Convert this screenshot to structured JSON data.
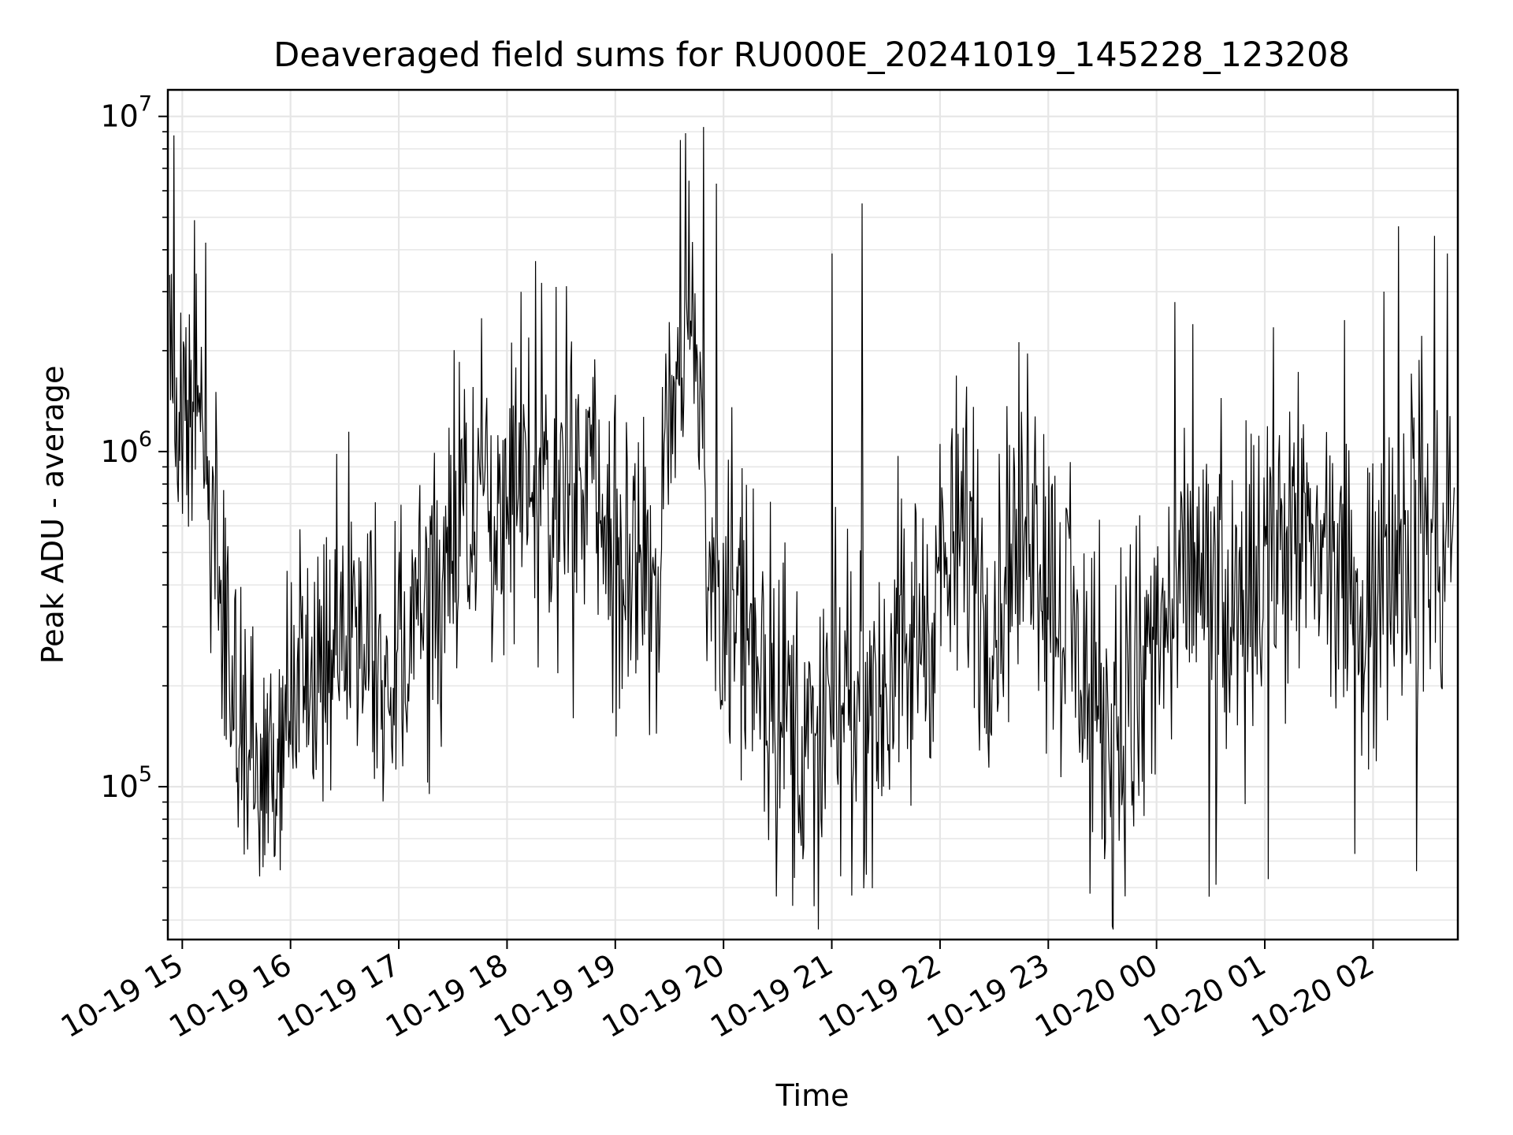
{
  "chart_data": {
    "type": "line",
    "title": "Deaveraged field sums for RU000E_20241019_145228_123208",
    "xlabel": "Time",
    "ylabel": "Peak ADU - average",
    "x_scale": "time",
    "y_scale": "log",
    "xlim": [
      "2024-10-19 14:52",
      "2024-10-20 02:47"
    ],
    "ylim": [
      35000,
      12000000
    ],
    "x_ticks": [
      {
        "label": "10-19 15",
        "time": "2024-10-19 15:00"
      },
      {
        "label": "10-19 16",
        "time": "2024-10-19 16:00"
      },
      {
        "label": "10-19 17",
        "time": "2024-10-19 17:00"
      },
      {
        "label": "10-19 18",
        "time": "2024-10-19 18:00"
      },
      {
        "label": "10-19 19",
        "time": "2024-10-19 19:00"
      },
      {
        "label": "10-19 20",
        "time": "2024-10-19 20:00"
      },
      {
        "label": "10-19 21",
        "time": "2024-10-19 21:00"
      },
      {
        "label": "10-19 22",
        "time": "2024-10-19 22:00"
      },
      {
        "label": "10-19 23",
        "time": "2024-10-19 23:00"
      },
      {
        "label": "10-20 00",
        "time": "2024-10-20 00:00"
      },
      {
        "label": "10-20 01",
        "time": "2024-10-20 01:00"
      },
      {
        "label": "10-20 02",
        "time": "2024-10-20 02:00"
      }
    ],
    "y_ticks": [
      {
        "value": 100000,
        "base": "10",
        "exp": "5"
      },
      {
        "value": 1000000,
        "base": "10",
        "exp": "6"
      },
      {
        "value": 10000000,
        "base": "10",
        "exp": "7"
      }
    ],
    "grid": true,
    "line_color": "#000000",
    "series": [
      {
        "x": [
          "2024-10-19 14:53",
          "2024-10-19 15:00",
          "2024-10-19 15:08",
          "2024-10-19 15:15",
          "2024-10-19 15:23",
          "2024-10-19 15:30",
          "2024-10-19 15:38",
          "2024-10-19 15:45",
          "2024-10-19 15:53",
          "2024-10-19 16:00",
          "2024-10-19 16:08",
          "2024-10-19 16:15",
          "2024-10-19 16:23",
          "2024-10-19 16:30",
          "2024-10-19 16:38",
          "2024-10-19 16:45",
          "2024-10-19 16:53",
          "2024-10-19 17:00",
          "2024-10-19 17:08",
          "2024-10-19 17:15",
          "2024-10-19 17:23",
          "2024-10-19 17:30",
          "2024-10-19 17:38",
          "2024-10-19 17:45",
          "2024-10-19 17:53",
          "2024-10-19 18:00",
          "2024-10-19 18:08",
          "2024-10-19 18:15",
          "2024-10-19 18:23",
          "2024-10-19 18:30",
          "2024-10-19 18:38",
          "2024-10-19 18:45",
          "2024-10-19 18:53",
          "2024-10-19 19:00",
          "2024-10-19 19:08",
          "2024-10-19 19:15",
          "2024-10-19 19:23",
          "2024-10-19 19:30",
          "2024-10-19 19:38",
          "2024-10-19 19:45",
          "2024-10-19 19:53",
          "2024-10-19 20:00",
          "2024-10-19 20:08",
          "2024-10-19 20:15",
          "2024-10-19 20:23",
          "2024-10-19 20:30",
          "2024-10-19 20:38",
          "2024-10-19 20:45",
          "2024-10-19 20:53",
          "2024-10-19 21:00",
          "2024-10-19 21:08",
          "2024-10-19 21:15",
          "2024-10-19 21:23",
          "2024-10-19 21:30",
          "2024-10-19 21:38",
          "2024-10-19 21:45",
          "2024-10-19 21:53",
          "2024-10-19 22:00",
          "2024-10-19 22:08",
          "2024-10-19 22:15",
          "2024-10-19 22:23",
          "2024-10-19 22:30",
          "2024-10-19 22:38",
          "2024-10-19 22:45",
          "2024-10-19 22:53",
          "2024-10-19 23:00",
          "2024-10-19 23:08",
          "2024-10-19 23:15",
          "2024-10-19 23:23",
          "2024-10-19 23:30",
          "2024-10-19 23:38",
          "2024-10-19 23:45",
          "2024-10-19 23:53",
          "2024-10-20 00:00",
          "2024-10-20 00:08",
          "2024-10-20 00:15",
          "2024-10-20 00:23",
          "2024-10-20 00:30",
          "2024-10-20 00:38",
          "2024-10-20 00:45",
          "2024-10-20 00:53",
          "2024-10-20 01:00",
          "2024-10-20 01:08",
          "2024-10-20 01:15",
          "2024-10-20 01:23",
          "2024-10-20 01:30",
          "2024-10-20 01:38",
          "2024-10-20 01:45",
          "2024-10-20 01:53",
          "2024-10-20 02:00",
          "2024-10-20 02:08",
          "2024-10-20 02:15",
          "2024-10-20 02:23",
          "2024-10-20 02:30",
          "2024-10-20 02:38",
          "2024-10-20 02:45"
        ],
        "y": [
          1500000,
          1200000,
          1100000,
          700000,
          320000,
          160000,
          120000,
          100000,
          110000,
          150000,
          180000,
          210000,
          280000,
          320000,
          300000,
          260000,
          230000,
          220000,
          290000,
          400000,
          530000,
          600000,
          650000,
          720000,
          780000,
          760000,
          720000,
          700000,
          680000,
          660000,
          700000,
          730000,
          620000,
          520000,
          430000,
          380000,
          360000,
          1700000,
          2600000,
          2100000,
          420000,
          380000,
          330000,
          270000,
          230000,
          190000,
          160000,
          140000,
          120000,
          150000,
          180000,
          200000,
          190000,
          210000,
          230000,
          260000,
          330000,
          400000,
          450000,
          650000,
          380000,
          330000,
          480000,
          560000,
          600000,
          420000,
          330000,
          260000,
          200000,
          150000,
          140000,
          180000,
          210000,
          260000,
          300000,
          390000,
          420000,
          360000,
          300000,
          260000,
          380000,
          520000,
          560000,
          580000,
          560000,
          490000,
          430000,
          350000,
          280000,
          300000,
          480000,
          560000,
          600000,
          520000,
          420000,
          600000
        ],
        "spread": [
          2.2,
          2.0,
          1.9,
          1.9,
          2.1,
          2.2,
          2.2,
          2.1,
          2.2,
          2.4,
          2.6,
          2.8,
          2.8,
          2.8,
          2.7,
          2.6,
          2.6,
          2.6,
          2.7,
          2.7,
          2.6,
          2.5,
          2.4,
          2.4,
          2.5,
          2.5,
          2.4,
          2.4,
          2.4,
          2.5,
          2.6,
          2.6,
          2.6,
          2.6,
          2.6,
          2.6,
          2.5,
          2.0,
          1.9,
          1.9,
          2.4,
          2.5,
          2.6,
          2.7,
          2.8,
          2.9,
          2.9,
          2.9,
          2.9,
          2.9,
          2.9,
          2.8,
          2.8,
          2.8,
          2.8,
          2.7,
          2.6,
          2.5,
          2.6,
          2.9,
          2.8,
          2.8,
          2.7,
          2.5,
          2.5,
          2.5,
          2.6,
          2.7,
          2.8,
          2.8,
          2.8,
          2.8,
          2.7,
          2.6,
          2.6,
          2.5,
          2.6,
          2.7,
          2.8,
          2.9,
          2.8,
          2.6,
          2.5,
          2.5,
          2.5,
          2.5,
          2.6,
          2.7,
          2.8,
          2.8,
          2.7,
          2.6,
          2.6,
          2.7,
          2.8,
          2.6
        ],
        "peaks": [
          {
            "time": "2024-10-19 15:07",
            "value": 4900000
          },
          {
            "time": "2024-10-19 15:13",
            "value": 4200000
          },
          {
            "time": "2024-10-19 17:46",
            "value": 2500000
          },
          {
            "time": "2024-10-19 18:16",
            "value": 3700000
          },
          {
            "time": "2024-10-19 18:27",
            "value": 3100000
          },
          {
            "time": "2024-10-19 19:49",
            "value": 9300000
          },
          {
            "time": "2024-10-19 19:56",
            "value": 6300000
          },
          {
            "time": "2024-10-19 21:00",
            "value": 3900000
          },
          {
            "time": "2024-10-19 21:17",
            "value": 5500000
          },
          {
            "time": "2024-10-20 00:20",
            "value": 2400000
          },
          {
            "time": "2024-10-20 02:06",
            "value": 3000000
          },
          {
            "time": "2024-10-20 02:14",
            "value": 4700000
          },
          {
            "time": "2024-10-20 02:34",
            "value": 4400000
          },
          {
            "time": "2024-10-20 02:41",
            "value": 3900000
          },
          {
            "time": "2024-10-19 20:50",
            "value": 44000
          },
          {
            "time": "2024-10-19 15:36",
            "value": 65000
          },
          {
            "time": "2024-10-19 23:23",
            "value": 48000
          },
          {
            "time": "2024-10-20 00:29",
            "value": 47000
          },
          {
            "time": "2024-10-20 00:33",
            "value": 51000
          },
          {
            "time": "2024-10-20 01:02",
            "value": 53000
          },
          {
            "time": "2024-10-20 02:24",
            "value": 56000
          }
        ]
      }
    ]
  }
}
